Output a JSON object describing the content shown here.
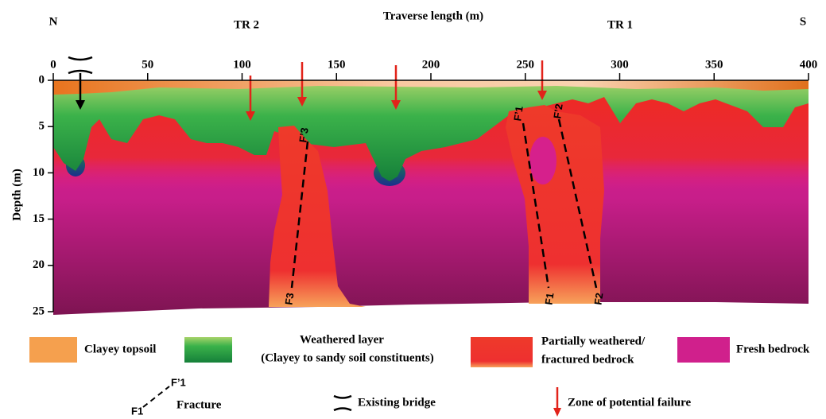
{
  "header": {
    "title": "Traverse length (m)",
    "left": "N",
    "right": "S",
    "traverses": [
      "TR 2",
      "TR 1"
    ]
  },
  "x_axis": {
    "lim": [
      0,
      400
    ],
    "ticks": [
      0,
      50,
      100,
      150,
      200,
      250,
      300,
      350,
      400
    ]
  },
  "y_axis": {
    "label": "Depth (m)",
    "lim": [
      0,
      25
    ],
    "ticks": [
      0,
      5,
      10,
      15,
      20,
      25
    ]
  },
  "fractures": [
    {
      "top": "F’3",
      "bottom": "F3"
    },
    {
      "top": "F’1",
      "bottom": "F1"
    },
    {
      "top": "F’2",
      "bottom": "F2"
    }
  ],
  "legend": {
    "topsoil": "Clayey topsoil",
    "weathered": [
      "Weathered layer",
      "(Clayey to sandy soil constituents)"
    ],
    "partial": [
      "Partially weathered/",
      "fractured bedrock"
    ],
    "bedrock": "Fresh bedrock",
    "fracture": {
      "label": "Fracture",
      "top": "F’1",
      "bottom": "F1"
    },
    "bridge": "Existing bridge",
    "failure": "Zone of potential failure"
  }
}
